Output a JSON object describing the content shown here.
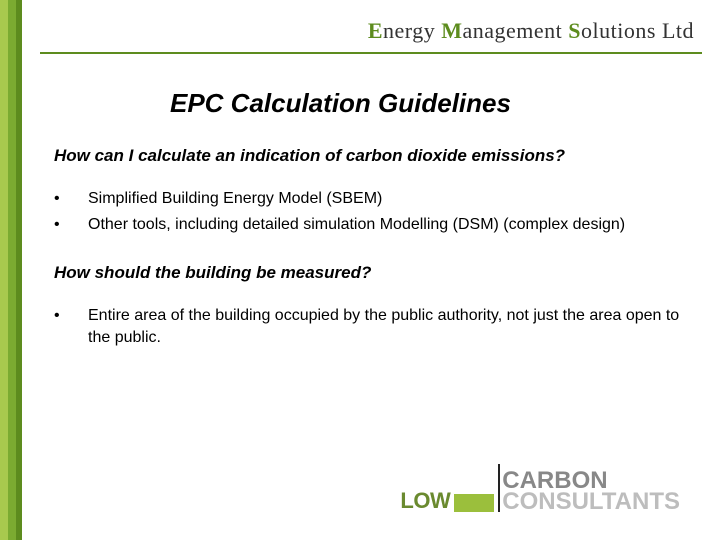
{
  "colors": {
    "band1": "#a8c94e",
    "band2": "#7bab31",
    "band3": "#5d8c1e",
    "divider": "#5d8c1e",
    "company_em": "#5d8c1e",
    "company_plain": "#333333",
    "text": "#000000",
    "footer_low": "#6a8a2f",
    "footer_sep": "#222222",
    "footer_carbon": "#888888",
    "footer_consult": "#bdbdbd",
    "footer_box": "#9bbf3c"
  },
  "header": {
    "seg1": "E",
    "seg2": "nergy ",
    "seg3": "M",
    "seg4": "anagement ",
    "seg5": "S",
    "seg6": "olutions Ltd",
    "seg1_color": "#5d8c1e",
    "seg2_color": "#333333",
    "seg3_color": "#5d8c1e",
    "seg4_color": "#333333",
    "seg5_color": "#5d8c1e",
    "seg6_color": "#333333"
  },
  "title": "EPC Calculation Guidelines",
  "section1": {
    "question": "How can I calculate an indication of carbon dioxide emissions?",
    "bullets": [
      "Simplified Building Energy Model (SBEM)",
      "Other tools, including detailed simulation Modelling (DSM) (complex design)"
    ]
  },
  "section2": {
    "question": "How should the building be measured?",
    "bullets": [
      "Entire area of the building occupied by the public authority, not just the area open to the public."
    ]
  },
  "footer": {
    "low": "LOW",
    "carbon": "CARBON",
    "consultants": "CONSULTANTS"
  }
}
